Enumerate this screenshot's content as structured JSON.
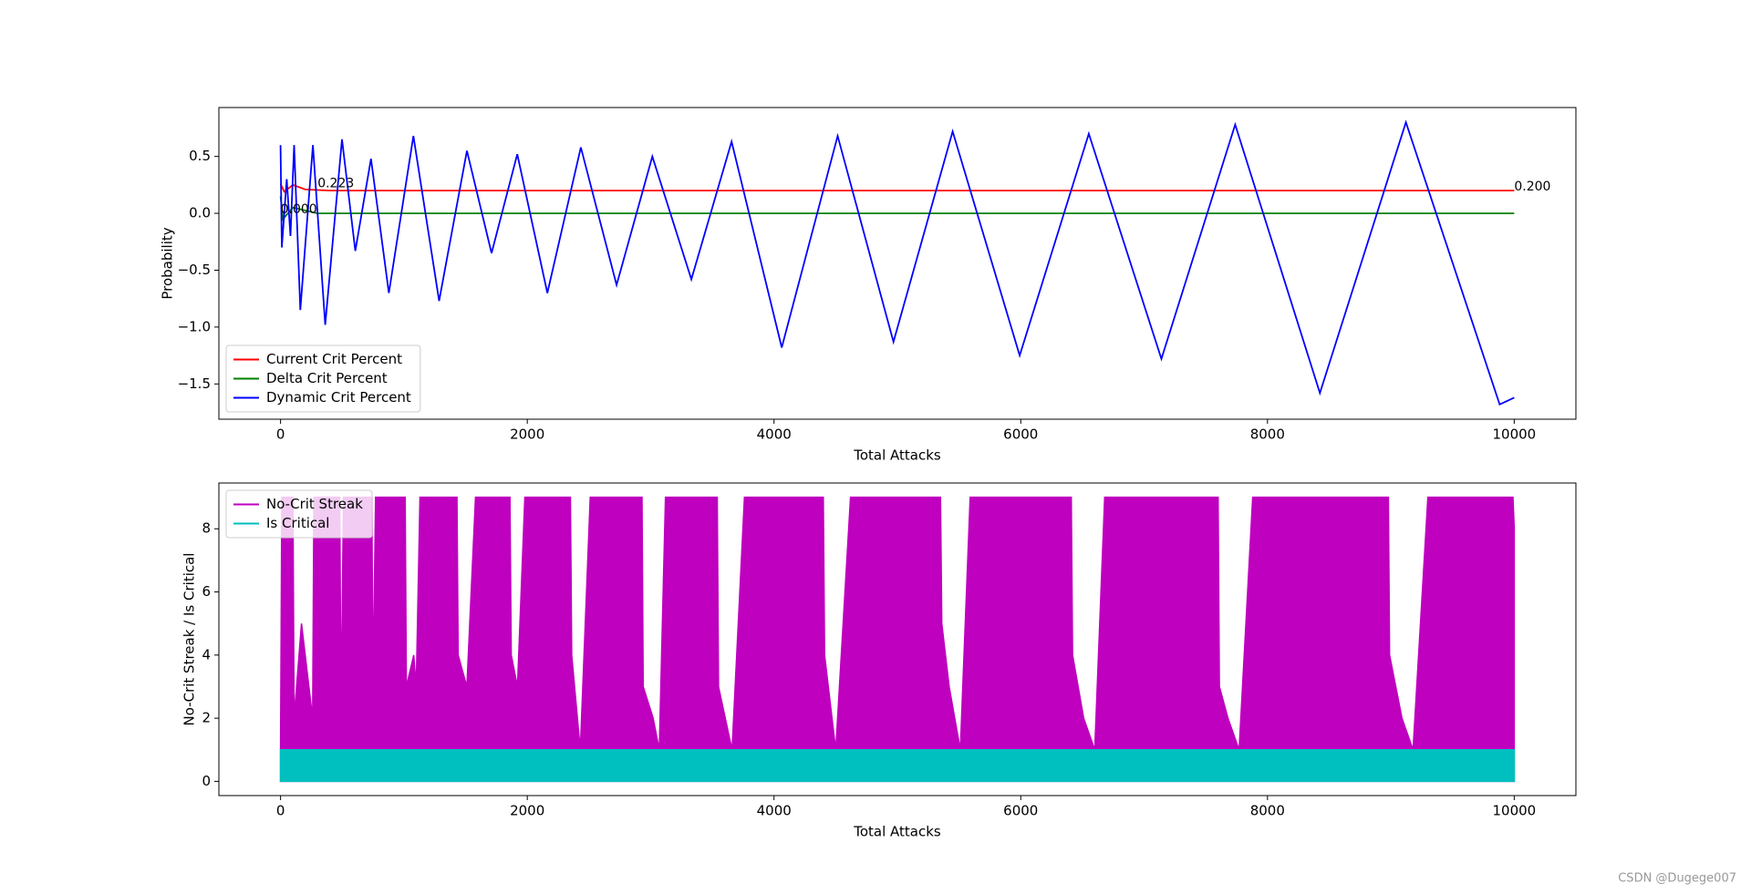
{
  "chart_data": [
    {
      "type": "line",
      "xlabel": "Total Attacks",
      "ylabel": "Probability",
      "xlim": [
        -500,
        10500
      ],
      "xticks": [
        0,
        2000,
        4000,
        6000,
        8000,
        10000
      ],
      "ylim": [
        -1.81,
        0.93
      ],
      "yticks": [
        {
          "value": -1.5,
          "label": "−1.5"
        },
        {
          "value": -1,
          "label": "−1.0"
        },
        {
          "value": -0.5,
          "label": "−0.5"
        },
        {
          "value": 0,
          "label": "0.0"
        },
        {
          "value": 0.5,
          "label": "0.5"
        }
      ],
      "legend": "lower left",
      "series": [
        {
          "name": "Current Crit Percent",
          "color": "#ff0000",
          "x": [
            0,
            30,
            100,
            200,
            400,
            2000,
            4000,
            6000,
            8000,
            10000
          ],
          "values": [
            0.26,
            0.19,
            0.25,
            0.21,
            0.2,
            0.2,
            0.2,
            0.2,
            0.2,
            0.2
          ]
        },
        {
          "name": "Delta Crit Percent",
          "color": "#008000",
          "x": [
            0,
            20,
            100,
            300,
            1000,
            3000,
            5000,
            7000,
            10000
          ],
          "values": [
            0.15,
            -0.05,
            0.05,
            0.0,
            0.0,
            0.0,
            0.0,
            0.0,
            0.0
          ]
        },
        {
          "name": "Dynamic Crit Percent",
          "color": "#0000ff",
          "x": [
            0,
            10,
            50,
            80,
            110,
            160,
            262,
            362,
            498,
            606,
            733,
            878,
            1077,
            1285,
            1511,
            1710,
            1919,
            2163,
            2434,
            2724,
            3014,
            3330,
            3656,
            4063,
            4516,
            4968,
            5448,
            5991,
            6552,
            7140,
            7738,
            8425,
            9122,
            9882,
            10000
          ],
          "values": [
            0.6,
            -0.3,
            0.3,
            -0.2,
            0.6,
            -0.85,
            0.6,
            -0.98,
            0.65,
            -0.33,
            0.48,
            -0.7,
            0.68,
            -0.77,
            0.55,
            -0.35,
            0.52,
            -0.7,
            0.58,
            -0.63,
            0.5,
            -0.58,
            0.63,
            -1.18,
            0.68,
            -1.13,
            0.72,
            -1.25,
            0.7,
            -1.28,
            0.78,
            -1.58,
            0.8,
            -1.68,
            -1.62
          ]
        }
      ],
      "annotations": [
        {
          "text": "0.000",
          "x": 0,
          "y": 0
        },
        {
          "text": "0.223",
          "x": 300,
          "y": 0.23
        },
        {
          "text": "0.200",
          "x": 10000,
          "y": 0.2
        }
      ]
    },
    {
      "type": "line",
      "xlabel": "Total Attacks",
      "ylabel": "No-Crit Streak / Is Critical",
      "xlim": [
        -500,
        10500
      ],
      "xticks": [
        0,
        2000,
        4000,
        6000,
        8000,
        10000
      ],
      "ylim": [
        -0.45,
        9.45
      ],
      "yticks": [
        0,
        2,
        4,
        6,
        8
      ],
      "legend": "upper left",
      "fill": true,
      "series": [
        {
          "name": "No-Crit Streak",
          "color": "#bf00bf",
          "x": [
            0,
            10,
            100,
            110,
            170,
            260,
            270,
            480,
            490,
            510,
            740,
            750,
            770,
            1010,
            1020,
            1080,
            1100,
            1130,
            1430,
            1440,
            1510,
            1580,
            1860,
            1870,
            1920,
            1980,
            2350,
            2360,
            2430,
            2510,
            2930,
            2940,
            3020,
            3070,
            3120,
            3540,
            3550,
            3660,
            3760,
            4400,
            4410,
            4500,
            4620,
            5350,
            5360,
            5420,
            5510,
            5590,
            6410,
            6420,
            6510,
            6600,
            6680,
            7600,
            7610,
            7680,
            7770,
            7880,
            8980,
            8990,
            9090,
            9180,
            9300,
            9990,
            10000
          ],
          "values": [
            1,
            9,
            9,
            2,
            5,
            2,
            9,
            9,
            2,
            9,
            9,
            3,
            9,
            9,
            3,
            4,
            3,
            9,
            9,
            4,
            3,
            9,
            9,
            4,
            3,
            9,
            9,
            4,
            1,
            9,
            9,
            3,
            2,
            1,
            9,
            9,
            3,
            1,
            9,
            9,
            4,
            1,
            9,
            9,
            5,
            3,
            1,
            9,
            9,
            4,
            2,
            1,
            9,
            9,
            3,
            2,
            1,
            9,
            9,
            4,
            2,
            1,
            9,
            9,
            8
          ]
        },
        {
          "name": "Is Critical",
          "color": "#00bfbf",
          "x": [
            0,
            10000
          ],
          "values": [
            1,
            1
          ]
        }
      ]
    }
  ],
  "watermark": "CSDN @Dugege007"
}
